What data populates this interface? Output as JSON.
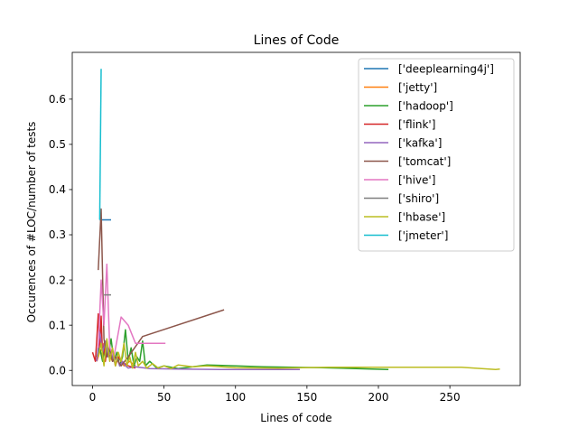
{
  "chart_data": {
    "type": "line",
    "title": "Lines of Code",
    "xlabel": "Lines of code",
    "ylabel": "Occurences of #LOC/number of tests",
    "xlim": [
      -14.2,
      299.2
    ],
    "ylim": [
      -0.0335,
      0.7035
    ],
    "xticks": [
      0,
      50,
      100,
      150,
      200,
      250
    ],
    "yticks": [
      0.0,
      0.1,
      0.2,
      0.3,
      0.4,
      0.5,
      0.6
    ],
    "xtick_labels": [
      "0",
      "50",
      "100",
      "150",
      "200",
      "250"
    ],
    "ytick_labels": [
      "0.0",
      "0.1",
      "0.2",
      "0.3",
      "0.4",
      "0.5",
      "0.6"
    ],
    "legend_position": "upper right",
    "grid": false,
    "series": [
      {
        "name": "['deeplearning4j']",
        "color": "#1f77b4",
        "x": [
          5,
          13
        ],
        "y": [
          0.333,
          0.333
        ]
      },
      {
        "name": "['jetty']",
        "color": "#ff7f0e",
        "x": [
          3,
          5,
          7,
          9,
          11,
          14,
          18,
          22,
          26,
          30
        ],
        "y": [
          0.02,
          0.04,
          0.05,
          0.03,
          0.04,
          0.02,
          0.03,
          0.01,
          0.02,
          0.01
        ]
      },
      {
        "name": "['hadoop']",
        "color": "#2ca02c",
        "x": [
          3,
          5,
          7,
          9,
          11,
          13,
          15,
          17,
          19,
          21,
          23,
          25,
          27,
          29,
          31,
          33,
          35,
          37,
          40,
          45,
          50,
          60,
          80,
          120,
          160,
          207
        ],
        "y": [
          0.03,
          0.05,
          0.02,
          0.06,
          0.03,
          0.07,
          0.02,
          0.04,
          0.01,
          0.03,
          0.09,
          0.02,
          0.05,
          0.01,
          0.03,
          0.02,
          0.065,
          0.01,
          0.02,
          0.005,
          0.01,
          0.004,
          0.012,
          0.008,
          0.006,
          0.002
        ]
      },
      {
        "name": "['flink']",
        "color": "#d62728",
        "x": [
          0,
          2,
          3,
          4,
          5,
          6,
          7,
          8,
          9,
          10,
          12,
          14,
          16,
          18,
          20,
          25,
          30
        ],
        "y": [
          0.04,
          0.02,
          0.07,
          0.125,
          0.05,
          0.12,
          0.03,
          0.06,
          0.02,
          0.05,
          0.03,
          0.04,
          0.01,
          0.03,
          0.02,
          0.01,
          0.005
        ]
      },
      {
        "name": "['kafka']",
        "color": "#9467bd",
        "x": [
          3,
          5,
          7,
          9,
          11,
          13,
          15,
          17,
          19,
          21,
          23,
          25,
          30,
          40,
          60,
          90,
          120,
          145
        ],
        "y": [
          0.02,
          0.085,
          0.04,
          0.065,
          0.03,
          0.045,
          0.02,
          0.03,
          0.01,
          0.02,
          0.01,
          0.005,
          0.008,
          0.004,
          0.003,
          0.002,
          0.002,
          0.002
        ]
      },
      {
        "name": "['tomcat']",
        "color": "#8c564b",
        "x": [
          4,
          6,
          8,
          10,
          12,
          14,
          16,
          20,
          25,
          35,
          92
        ],
        "y": [
          0.222,
          0.357,
          0.07,
          0.03,
          0.05,
          0.02,
          0.03,
          0.01,
          0.03,
          0.075,
          0.134
        ]
      },
      {
        "name": "['hive']",
        "color": "#e377c2",
        "x": [
          4,
          6,
          8,
          10,
          12,
          15,
          20,
          25,
          30,
          40,
          51
        ],
        "y": [
          0.05,
          0.2,
          0.1,
          0.235,
          0.05,
          0.03,
          0.118,
          0.1,
          0.06,
          0.06,
          0.06
        ]
      },
      {
        "name": "['shiro']",
        "color": "#7f7f7f",
        "x": [
          8,
          13
        ],
        "y": [
          0.167,
          0.167
        ]
      },
      {
        "name": "['hbase']",
        "color": "#bcbd22",
        "x": [
          4,
          6,
          8,
          10,
          12,
          14,
          16,
          18,
          20,
          22,
          24,
          26,
          28,
          30,
          32,
          35,
          38,
          42,
          46,
          50,
          55,
          60,
          70,
          80,
          100,
          130,
          165,
          200,
          258,
          282,
          285
        ],
        "y": [
          0.03,
          0.06,
          0.01,
          0.07,
          0.02,
          0.05,
          0.01,
          0.04,
          0.02,
          0.06,
          0.01,
          0.03,
          0.005,
          0.04,
          0.01,
          0.02,
          0.005,
          0.015,
          0.005,
          0.01,
          0.004,
          0.012,
          0.008,
          0.01,
          0.006,
          0.005,
          0.007,
          0.007,
          0.007,
          0.002,
          0.003
        ]
      },
      {
        "name": "['jmeter']",
        "color": "#17becf",
        "x": [
          5,
          6
        ],
        "y": [
          0.333,
          0.667
        ]
      }
    ]
  }
}
